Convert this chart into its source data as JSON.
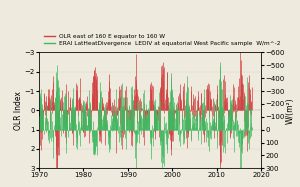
{
  "legend_olr": "OLR east of 160 E equator to 160 W",
  "legend_erai": "ERAI LatHeatDivergence  LEDIV at equatorial West Pacific sample  W/m^-2",
  "ylabel_left": "OLR Index",
  "ylabel_right": "W/(m²)",
  "x_start": 1970,
  "x_end": 2020,
  "x_ticks": [
    1970,
    1980,
    1990,
    2000,
    2010,
    2020
  ],
  "ylim_left_bottom": 3,
  "ylim_left_top": -3,
  "ylim_right_bottom": 300,
  "ylim_right_top": -600,
  "yticks_left": [
    3,
    2,
    1,
    0,
    -1,
    -2,
    -3
  ],
  "yticks_right": [
    300,
    200,
    100,
    0,
    -100,
    -200,
    -300,
    -400,
    -500,
    -600
  ],
  "color_olr": "#d04040",
  "color_erai": "#40b860",
  "bg_color": "#eeeade",
  "fig_width": 3.0,
  "fig_height": 1.87,
  "dpi": 100,
  "legend_fontsize": 4.2,
  "tick_fontsize": 5.0,
  "label_fontsize": 5.5
}
